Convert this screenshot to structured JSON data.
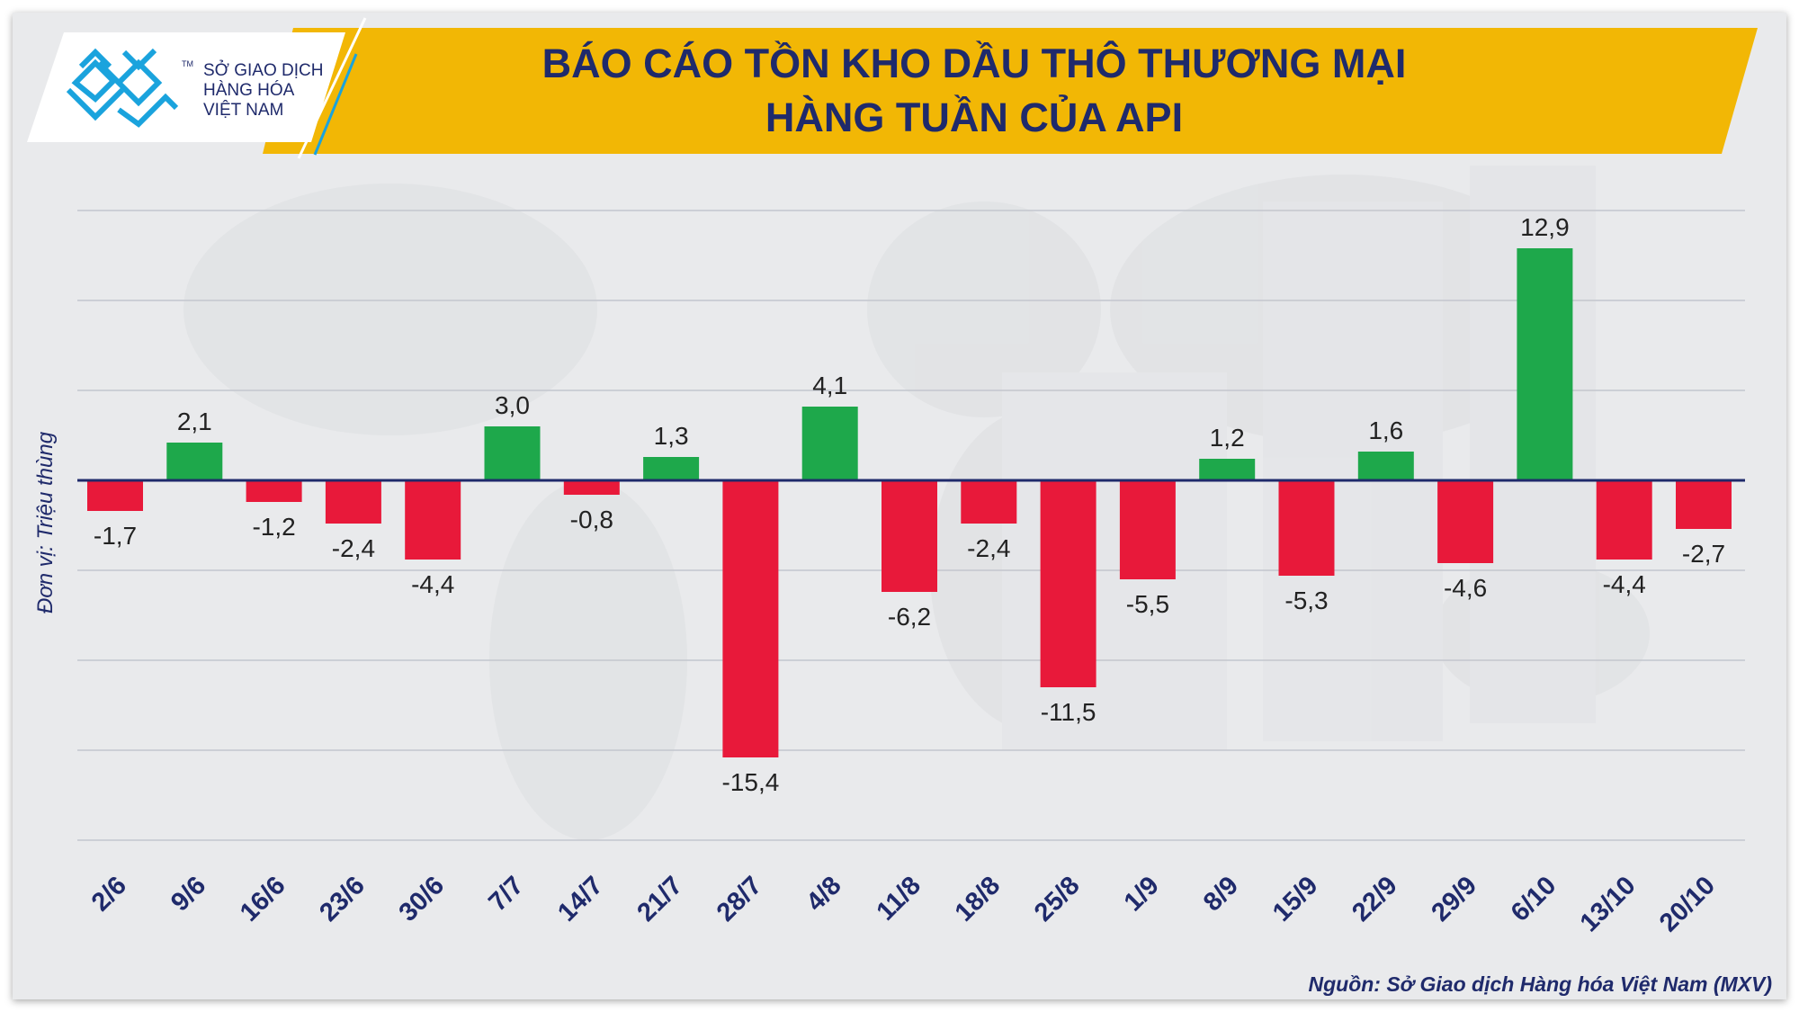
{
  "header": {
    "title_line1": "BÁO CÁO TỒN KHO DẦU THÔ THƯƠNG MẠI",
    "title_line2": "HÀNG TUẦN CỦA API"
  },
  "brand": {
    "line1": "SỞ GIAO DỊCH",
    "line2": "HÀNG HÓA",
    "line3": "VIỆT NAM",
    "tm": "TM",
    "logo_color": "#1aa3dd"
  },
  "colors": {
    "positive": "#1ea84b",
    "negative": "#e8193a",
    "header_band": "#f2b705",
    "title_text": "#1f2a6b",
    "zero_line": "#1f2a6b"
  },
  "chart_data": {
    "type": "bar",
    "title": "BÁO CÁO TỒN KHO DẦU THÔ THƯƠNG MẠI HÀNG TUẦN CỦA API",
    "ylabel": "Đơn vị: Triệu thùng",
    "xlabel": "",
    "ylim": [
      -20,
      15
    ],
    "grid_step": 5,
    "grid": true,
    "categories": [
      "2/6",
      "9/6",
      "16/6",
      "23/6",
      "30/6",
      "7/7",
      "14/7",
      "21/7",
      "28/7",
      "4/8",
      "11/8",
      "18/8",
      "25/8",
      "1/9",
      "8/9",
      "15/9",
      "22/9",
      "29/9",
      "6/10",
      "13/10",
      "20/10"
    ],
    "values": [
      -1.7,
      2.1,
      -1.2,
      -2.4,
      -4.4,
      3.0,
      -0.8,
      1.3,
      -15.4,
      4.1,
      -6.2,
      -2.4,
      -11.5,
      -5.5,
      1.2,
      -5.3,
      1.6,
      -4.6,
      12.9,
      -4.4,
      -2.7
    ],
    "labels": [
      "-1,7",
      "2,1",
      "-1,2",
      "-2,4",
      "-4,4",
      "3,0",
      "-0,8",
      "1,3",
      "-15,4",
      "4,1",
      "-6,2",
      "-2,4",
      "-11,5",
      "-5,5",
      "1,2",
      "-5,3",
      "1,6",
      "-4,6",
      "12,9",
      "-4,4",
      "-2,7"
    ]
  },
  "source": "Nguồn: Sở Giao dịch Hàng hóa Việt Nam (MXV)"
}
